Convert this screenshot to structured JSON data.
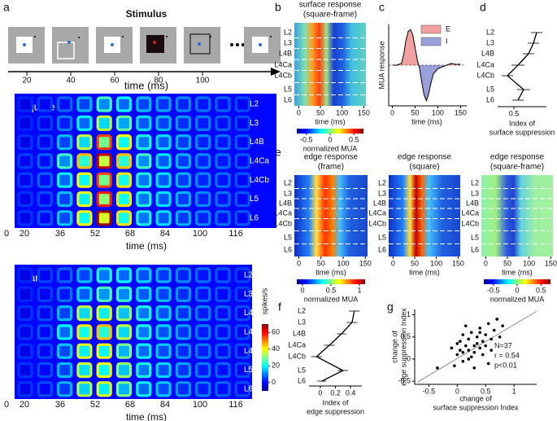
{
  "panel_a": {
    "label": "a",
    "title": "Stimulus",
    "frame_times": [
      20,
      40,
      60,
      80,
      100
    ],
    "axis_label": "time (ms)",
    "square": {
      "name": "square",
      "layers": [
        "L2",
        "L3",
        "L4B",
        "L4Ca",
        "L4Cb",
        "L5",
        "L6"
      ],
      "xticks": [
        0,
        20,
        36,
        52,
        68,
        84,
        100,
        116
      ],
      "xlabel": "time (ms)",
      "rates": [
        [
          3,
          5,
          8,
          15,
          25,
          20,
          15,
          13,
          11,
          9,
          8,
          6
        ],
        [
          3,
          5,
          10,
          20,
          35,
          28,
          18,
          15,
          12,
          10,
          8,
          6
        ],
        [
          4,
          6,
          15,
          35,
          55,
          40,
          22,
          18,
          14,
          11,
          9,
          7
        ],
        [
          5,
          8,
          25,
          45,
          65,
          45,
          25,
          18,
          14,
          11,
          9,
          7
        ],
        [
          5,
          8,
          20,
          40,
          55,
          42,
          22,
          18,
          14,
          11,
          9,
          7
        ],
        [
          4,
          6,
          15,
          38,
          58,
          42,
          22,
          18,
          14,
          11,
          9,
          7
        ],
        [
          4,
          7,
          16,
          40,
          68,
          42,
          22,
          18,
          14,
          11,
          9,
          7
        ]
      ]
    },
    "frame": {
      "name": "frame",
      "layers": [
        "L2",
        "L3",
        "L4B",
        "L4Ca",
        "L4Cb",
        "L5",
        "L6"
      ],
      "xticks": [
        0,
        20,
        36,
        52,
        68,
        84,
        100,
        116
      ],
      "xlabel": "time (ms)",
      "rates": [
        [
          3,
          5,
          8,
          15,
          22,
          20,
          17,
          14,
          11,
          9,
          7,
          5
        ],
        [
          3,
          5,
          9,
          18,
          26,
          24,
          18,
          15,
          12,
          9,
          7,
          5
        ],
        [
          4,
          6,
          15,
          35,
          38,
          32,
          22,
          17,
          13,
          10,
          8,
          6
        ],
        [
          4,
          7,
          20,
          42,
          45,
          35,
          22,
          17,
          13,
          10,
          8,
          6
        ],
        [
          4,
          6,
          16,
          38,
          40,
          30,
          20,
          16,
          12,
          10,
          8,
          6
        ],
        [
          4,
          6,
          15,
          36,
          40,
          32,
          22,
          17,
          13,
          10,
          8,
          6
        ],
        [
          4,
          6,
          14,
          34,
          38,
          30,
          20,
          16,
          12,
          10,
          8,
          6
        ]
      ]
    },
    "colorbar": {
      "label": "spikes/s",
      "ticks": [
        0,
        20,
        40,
        60
      ],
      "lim": [
        -10,
        70
      ]
    }
  },
  "panel_b": {
    "label": "b",
    "title": [
      "surface response",
      "(square-frame)"
    ],
    "layers": [
      "L2",
      "L3",
      "L4B",
      "L4Ca",
      "L4Cb",
      "L5",
      "L6"
    ],
    "xticks": [
      0,
      50,
      100,
      150
    ],
    "xlim": [
      -10,
      155
    ],
    "xlabel": "time (ms)",
    "colorbar": {
      "ticks": [
        -0.5,
        0,
        0.5
      ],
      "lim": [
        -0.7,
        0.7
      ],
      "label": "normalized MUA"
    }
  },
  "panel_c": {
    "label": "c",
    "ylabel": "MUA response",
    "xlabel": "time (ms)",
    "xticks": [
      0,
      50,
      100,
      150
    ],
    "xlim": [
      -8,
      160
    ],
    "ylim": [
      -1.1,
      1.1
    ],
    "legend": [
      "E",
      "I"
    ],
    "time": [
      0,
      10,
      20,
      25,
      30,
      35,
      40,
      45,
      50,
      55,
      60,
      65,
      70,
      75,
      80,
      85,
      90,
      100,
      110,
      120,
      130,
      140,
      150
    ],
    "response": [
      0,
      0,
      0.05,
      0.3,
      0.7,
      0.95,
      1.0,
      0.85,
      0.5,
      0.15,
      -0.1,
      -0.5,
      -0.85,
      -1.0,
      -0.8,
      -0.5,
      -0.25,
      -0.1,
      -0.05,
      0,
      0.05,
      0.02,
      0.03
    ]
  },
  "panel_d": {
    "label": "d",
    "layers": [
      "L2",
      "L3",
      "L4B",
      "L4Ca",
      "L4Cb",
      "L5",
      "L6"
    ],
    "xlabel": [
      "Index of",
      "surface suppression"
    ],
    "xticks": [
      0.5
    ],
    "xlim": [
      0.3,
      0.9
    ],
    "values": [
      0.78,
      0.74,
      0.68,
      0.55,
      0.42,
      0.62,
      0.55
    ],
    "errors": [
      0.07,
      0.07,
      0.07,
      0.08,
      0.07,
      0.08,
      0.07
    ]
  },
  "panel_e": {
    "label": "e",
    "maps": [
      {
        "title": [
          "edge response",
          "(frame)"
        ],
        "layers": [
          "L2",
          "L3",
          "L4B",
          "L4Ca",
          "L4Cb",
          "L5",
          "L6"
        ],
        "xticks": [
          0,
          50,
          100,
          150
        ],
        "xlabel": "time (ms)",
        "colorbar": {
          "ticks": [
            0,
            0.5,
            1
          ],
          "lim": [
            -0.1,
            1.1
          ],
          "label": "normalized MUA"
        }
      },
      {
        "title": [
          "edge response",
          "(square)"
        ],
        "layers": [
          "L2",
          "L3",
          "L4B",
          "L4Ca",
          "L4Cb",
          "L5",
          "L6"
        ],
        "xticks": [
          0,
          50,
          100,
          150
        ],
        "xlabel": "time (ms)"
      },
      {
        "title": [
          "edge response",
          "(square-frame)"
        ],
        "layers": [
          "L2",
          "L3",
          "L4B",
          "L4Ca",
          "L4Cb",
          "L5",
          "L6"
        ],
        "xticks": [
          0,
          50,
          100,
          150
        ],
        "xlabel": "time (ms)",
        "colorbar": {
          "ticks": [
            -0.5,
            0,
            0.5
          ],
          "lim": [
            -0.7,
            0.7
          ],
          "label": "normalized MUA"
        }
      }
    ],
    "xlim": [
      -10,
      155
    ]
  },
  "panel_f": {
    "label": "f",
    "layers": [
      "L2",
      "L3",
      "L4B",
      "L4Ca",
      "L4Cb",
      "L5",
      "L6"
    ],
    "xlabel": [
      "Index of",
      "edge suppression"
    ],
    "xticks": [
      0,
      0.2,
      0.4
    ],
    "xlim": [
      -0.15,
      0.55
    ],
    "values": [
      0.45,
      0.42,
      0.28,
      0.12,
      -0.05,
      0.3,
      0.02
    ],
    "errors": [
      0.07,
      0.07,
      0.06,
      0.07,
      0.07,
      0.07,
      0.06
    ]
  },
  "panel_g": {
    "label": "g",
    "ylabel": [
      "change of",
      "edge suppression Index"
    ],
    "xlabel": [
      "change of",
      "surface suppression Index"
    ],
    "xticks": [
      -0.5,
      0,
      0.5,
      1
    ],
    "yticks": [
      1,
      0.5,
      0,
      -0.5
    ],
    "xlim": [
      -0.75,
      1.4
    ],
    "ylim": [
      -0.57,
      1.12
    ],
    "stats": [
      "N=37",
      "r = 0.54",
      "p<0.01"
    ],
    "x": [
      -0.35,
      -0.1,
      0,
      0.05,
      0.1,
      0.1,
      0.15,
      0.2,
      0.2,
      0.25,
      0.25,
      0.3,
      0.3,
      0.35,
      0.35,
      0.4,
      0.4,
      0.45,
      0.45,
      0.5,
      0.5,
      0.55,
      0.6,
      0.6,
      0.65,
      0.7,
      0.75,
      -0.05,
      0.05,
      0.15,
      0.3,
      0.55,
      0,
      0.2,
      0.4,
      0.8,
      0.1
    ],
    "y": [
      -0.2,
      0.25,
      0.1,
      0.4,
      0.55,
      -0.05,
      0.3,
      0.2,
      0.45,
      0.6,
      0.05,
      0.3,
      0.15,
      0.5,
      0.35,
      0.25,
      0.7,
      0.1,
      0.4,
      0.55,
      0.3,
      0.8,
      0.45,
      0.2,
      0.65,
      0.9,
      0.5,
      -0.15,
      0.2,
      0.75,
      -0.2,
      -0.1,
      0.35,
      0,
      0.6,
      0.75,
      0.15
    ],
    "fit_line": {
      "x": [
        -0.7,
        1.4
      ],
      "y": [
        -0.52,
        1.08
      ]
    }
  }
}
